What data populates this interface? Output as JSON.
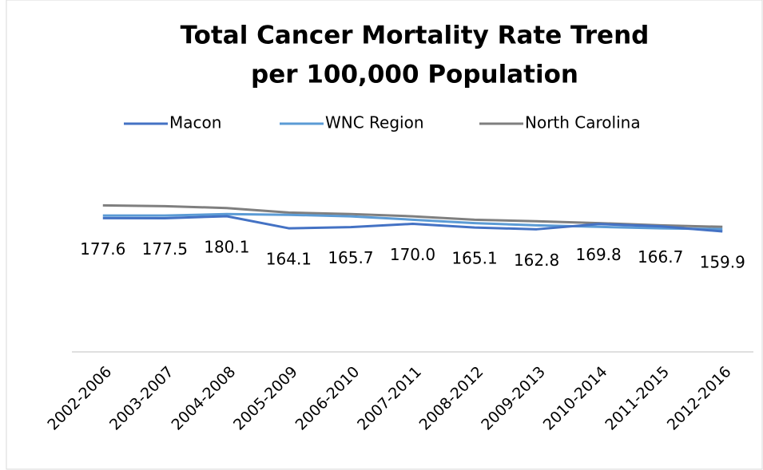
{
  "chart_data": {
    "type": "line",
    "title": [
      "Total Cancer Mortality Rate Trend",
      "per 100,000 Population"
    ],
    "categories": [
      "2002-2006",
      "2003-2007",
      "2004-2008",
      "2005-2009",
      "2006-2010",
      "2007-2011",
      "2008-2012",
      "2009-2013",
      "2010-2014",
      "2011-2015",
      "2012-2016"
    ],
    "series": [
      {
        "name": "Macon",
        "color": "#4472c4",
        "values": [
          177.6,
          177.5,
          180.1,
          164.1,
          165.7,
          170.0,
          165.1,
          162.8,
          169.8,
          166.7,
          159.9
        ],
        "value_labels": [
          "177.6",
          "177.5",
          "180.1",
          "164.1",
          "165.7",
          "170.0",
          "165.1",
          "162.8",
          "169.8",
          "166.7",
          "159.9"
        ]
      },
      {
        "name": "WNC Region",
        "color": "#5b9bd5",
        "values": [
          181,
          181,
          183,
          182,
          180,
          175.5,
          171,
          168,
          166,
          164,
          163
        ]
      },
      {
        "name": "North Carolina",
        "color": "#7f7f7f",
        "values": [
          194.5,
          193.5,
          191,
          185,
          183,
          180,
          175.5,
          173.5,
          171,
          168,
          166
        ]
      }
    ],
    "ylim": [
      0,
      250
    ],
    "legend": "top"
  }
}
